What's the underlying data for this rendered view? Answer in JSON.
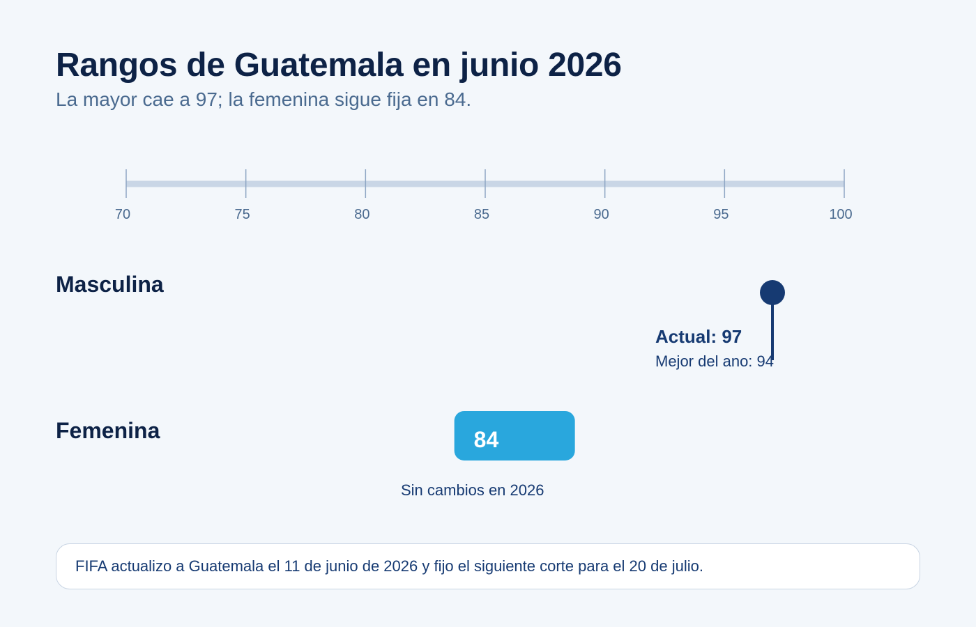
{
  "header": {
    "title": "Rangos de Guatemala en junio 2026",
    "subtitle": "La mayor cae a 97; la femenina sigue fija en 84."
  },
  "chart_data": {
    "type": "bar",
    "axis": {
      "xlim": [
        70,
        100
      ],
      "ticks": [
        70,
        75,
        80,
        85,
        90,
        95,
        100
      ]
    },
    "rows": [
      {
        "label": "Masculina",
        "marker": "lollipop",
        "current": 97,
        "current_label": "Actual: 97",
        "best_of_year": 94,
        "best_label": "Mejor del ano: 94"
      },
      {
        "label": "Femenina",
        "marker": "pill",
        "value": 84,
        "value_label": "84",
        "note": "Sin cambios en 2026"
      }
    ]
  },
  "footer": {
    "text": "FIFA actualizo a Guatemala el 11 de junio de 2026 y fijo el siguiente corte para el 20 de julio."
  },
  "colors": {
    "background": "#f3f7fb",
    "dark_navy": "#0d2246",
    "marker_navy": "#163a72",
    "pill_blue": "#29a7dd",
    "axis_track": "#c9d6e6",
    "tick": "#8ea6c4",
    "muted_text": "#4a6a8f"
  }
}
